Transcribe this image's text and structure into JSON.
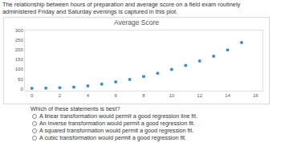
{
  "header": "The relationship between hours of preparation and average score on a field exam routinely administered Friday and Saturday evenings is captured in this plot.",
  "chart_data": {
    "type": "scatter",
    "title": "Average Score",
    "x": [
      0,
      1,
      2,
      3,
      4,
      5,
      6,
      7,
      8,
      9,
      10,
      11,
      12,
      13,
      14,
      15
    ],
    "values": [
      2,
      3,
      5,
      9,
      15,
      24,
      35,
      48,
      63,
      80,
      100,
      120,
      143,
      168,
      200,
      238
    ],
    "color": "#3d8fc9",
    "marker": "circle",
    "xlim": [
      -0.5,
      16.5
    ],
    "xticks": [
      0,
      2,
      4,
      6,
      8,
      10,
      12,
      14,
      16
    ],
    "ylim": [
      -10,
      300
    ],
    "yticks": [
      0,
      50,
      100,
      150,
      200,
      250,
      300
    ],
    "grid": false
  },
  "question": {
    "prompt": "Which of these statements is best?",
    "options": [
      "A linear transformation would permit a good regression line fit.",
      "An inverse transformation would permit a good regression fit.",
      "A squared transformation would permit a good regression fit.",
      "A cubic transformation would permit a good regression fit."
    ]
  }
}
